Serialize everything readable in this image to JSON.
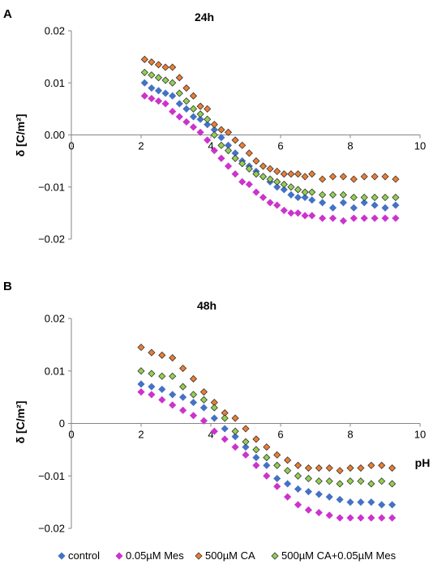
{
  "chart_data": [
    {
      "type": "scatter",
      "panel": "A",
      "title": "24h",
      "xlabel": "",
      "ylabel": "δ [C/m²]",
      "xlim": [
        0,
        10
      ],
      "ylim": [
        -0.02,
        0.02
      ],
      "xticks": [
        "0",
        "2",
        "4",
        "6",
        "8",
        "10"
      ],
      "yticks": [
        "0.02",
        "0.01",
        "0.00",
        "−0.01",
        "−0.02"
      ],
      "grid": false,
      "series": [
        {
          "name": "control",
          "color": "#4472C4",
          "marker": "diamond",
          "x": [
            2.1,
            2.3,
            2.5,
            2.7,
            2.9,
            3.1,
            3.3,
            3.5,
            3.7,
            3.9,
            4.1,
            4.3,
            4.5,
            4.7,
            4.9,
            5.1,
            5.3,
            5.5,
            5.7,
            5.9,
            6.1,
            6.3,
            6.5,
            6.7,
            6.9,
            7.2,
            7.5,
            7.8,
            8.1,
            8.4,
            8.7,
            9.0,
            9.3
          ],
          "y": [
            0.01,
            0.009,
            0.0085,
            0.008,
            0.0075,
            0.006,
            0.005,
            0.0035,
            0.003,
            0.002,
            0.001,
            -0.0005,
            -0.002,
            -0.0035,
            -0.005,
            -0.006,
            -0.007,
            -0.008,
            -0.009,
            -0.01,
            -0.0105,
            -0.0115,
            -0.012,
            -0.012,
            -0.0125,
            -0.013,
            -0.014,
            -0.013,
            -0.014,
            -0.013,
            -0.0135,
            -0.014,
            -0.0135
          ]
        },
        {
          "name": "0.05µM Mes",
          "color": "#CC33CC",
          "marker": "diamond",
          "x": [
            2.1,
            2.3,
            2.5,
            2.7,
            2.9,
            3.1,
            3.3,
            3.5,
            3.7,
            3.9,
            4.1,
            4.3,
            4.5,
            4.7,
            4.9,
            5.1,
            5.3,
            5.5,
            5.7,
            5.9,
            6.1,
            6.3,
            6.5,
            6.7,
            6.9,
            7.2,
            7.5,
            7.8,
            8.1,
            8.4,
            8.7,
            9.0,
            9.3
          ],
          "y": [
            0.0075,
            0.007,
            0.0065,
            0.006,
            0.0045,
            0.0035,
            0.0025,
            0.0015,
            0.0005,
            -0.001,
            -0.003,
            -0.0045,
            -0.006,
            -0.0075,
            -0.009,
            -0.0095,
            -0.011,
            -0.012,
            -0.013,
            -0.0135,
            -0.0145,
            -0.015,
            -0.015,
            -0.0155,
            -0.0155,
            -0.016,
            -0.016,
            -0.0165,
            -0.016,
            -0.016,
            -0.016,
            -0.016,
            -0.016
          ]
        },
        {
          "name": "500µM CA",
          "color": "#ED7D31",
          "marker": "diamond",
          "x": [
            2.1,
            2.3,
            2.5,
            2.7,
            2.9,
            3.1,
            3.3,
            3.5,
            3.7,
            3.9,
            4.1,
            4.3,
            4.5,
            4.7,
            4.9,
            5.1,
            5.3,
            5.5,
            5.7,
            5.9,
            6.1,
            6.3,
            6.5,
            6.7,
            6.9,
            7.2,
            7.5,
            7.8,
            8.1,
            8.4,
            8.7,
            9.0,
            9.3
          ],
          "y": [
            0.0145,
            0.014,
            0.0135,
            0.013,
            0.013,
            0.011,
            0.009,
            0.0075,
            0.0055,
            0.005,
            0.002,
            0.001,
            0.0005,
            -0.001,
            -0.002,
            -0.0035,
            -0.005,
            -0.006,
            -0.0065,
            -0.007,
            -0.0075,
            -0.0075,
            -0.0075,
            -0.008,
            -0.0075,
            -0.0085,
            -0.008,
            -0.008,
            -0.0085,
            -0.008,
            -0.008,
            -0.008,
            -0.0085
          ]
        },
        {
          "name": "500µM CA+0.05µM Mes",
          "color": "#92D050",
          "marker": "diamond",
          "x": [
            2.1,
            2.3,
            2.5,
            2.7,
            2.9,
            3.1,
            3.3,
            3.5,
            3.7,
            3.9,
            4.1,
            4.3,
            4.5,
            4.7,
            4.9,
            5.1,
            5.3,
            5.5,
            5.7,
            5.9,
            6.1,
            6.3,
            6.5,
            6.7,
            6.9,
            7.2,
            7.5,
            7.8,
            8.1,
            8.4,
            8.7,
            9.0,
            9.3
          ],
          "y": [
            0.012,
            0.0115,
            0.011,
            0.0105,
            0.01,
            0.008,
            0.0065,
            0.005,
            0.004,
            0.003,
            0.0,
            -0.002,
            -0.003,
            -0.0045,
            -0.0055,
            -0.0065,
            -0.0075,
            -0.008,
            -0.0085,
            -0.009,
            -0.0095,
            -0.01,
            -0.0105,
            -0.011,
            -0.011,
            -0.0115,
            -0.0115,
            -0.0115,
            -0.012,
            -0.012,
            -0.012,
            -0.012,
            -0.012
          ]
        }
      ]
    },
    {
      "type": "scatter",
      "panel": "B",
      "title": "48h",
      "xlabel": "pH",
      "ylabel": "δ [C/m²]",
      "xlim": [
        0,
        10
      ],
      "ylim": [
        -0.02,
        0.02
      ],
      "xticks": [
        "0",
        "2",
        "4",
        "6",
        "8",
        "10"
      ],
      "yticks": [
        "0.02",
        "0.01",
        "0",
        "−0.01",
        "−0.02"
      ],
      "grid": false,
      "series": [
        {
          "name": "control",
          "color": "#4472C4",
          "marker": "diamond",
          "x": [
            2.0,
            2.3,
            2.6,
            2.9,
            3.2,
            3.5,
            3.8,
            4.1,
            4.4,
            4.7,
            5.0,
            5.3,
            5.6,
            5.9,
            6.2,
            6.5,
            6.8,
            7.1,
            7.4,
            7.7,
            8.0,
            8.3,
            8.6,
            8.9,
            9.2
          ],
          "y": [
            0.0075,
            0.007,
            0.0065,
            0.0055,
            0.005,
            0.004,
            0.003,
            0.001,
            -0.001,
            -0.0025,
            -0.0045,
            -0.0065,
            -0.008,
            -0.0105,
            -0.0115,
            -0.0125,
            -0.013,
            -0.0135,
            -0.014,
            -0.0145,
            -0.015,
            -0.015,
            -0.015,
            -0.0155,
            -0.0155
          ]
        },
        {
          "name": "0.05µM Mes",
          "color": "#CC33CC",
          "marker": "diamond",
          "x": [
            2.0,
            2.3,
            2.6,
            2.9,
            3.2,
            3.5,
            3.8,
            4.1,
            4.4,
            4.7,
            5.0,
            5.3,
            5.6,
            5.9,
            6.2,
            6.5,
            6.8,
            7.1,
            7.4,
            7.7,
            8.0,
            8.3,
            8.6,
            8.9,
            9.2
          ],
          "y": [
            0.006,
            0.0055,
            0.0045,
            0.0035,
            0.0025,
            0.0015,
            0.0005,
            -0.0015,
            -0.003,
            -0.0045,
            -0.006,
            -0.008,
            -0.01,
            -0.012,
            -0.014,
            -0.0155,
            -0.0165,
            -0.017,
            -0.0175,
            -0.018,
            -0.018,
            -0.018,
            -0.018,
            -0.018,
            -0.018
          ]
        },
        {
          "name": "500µM CA",
          "color": "#ED7D31",
          "marker": "diamond",
          "x": [
            2.0,
            2.3,
            2.6,
            2.9,
            3.2,
            3.5,
            3.8,
            4.1,
            4.4,
            4.7,
            5.0,
            5.3,
            5.6,
            5.9,
            6.2,
            6.5,
            6.8,
            7.1,
            7.4,
            7.7,
            8.0,
            8.3,
            8.6,
            8.9,
            9.2
          ],
          "y": [
            0.0145,
            0.0135,
            0.013,
            0.0125,
            0.0105,
            0.0085,
            0.006,
            0.004,
            0.002,
            0.001,
            -0.001,
            -0.003,
            -0.0045,
            -0.006,
            -0.007,
            -0.008,
            -0.0085,
            -0.0085,
            -0.0085,
            -0.009,
            -0.0085,
            -0.0085,
            -0.008,
            -0.008,
            -0.0085
          ]
        },
        {
          "name": "500µM CA+0.05µM Mes",
          "color": "#92D050",
          "marker": "diamond",
          "x": [
            2.0,
            2.3,
            2.6,
            2.9,
            3.2,
            3.5,
            3.8,
            4.1,
            4.4,
            4.7,
            5.0,
            5.3,
            5.6,
            5.9,
            6.2,
            6.5,
            6.8,
            7.1,
            7.4,
            7.7,
            8.0,
            8.3,
            8.6,
            8.9,
            9.2
          ],
          "y": [
            0.01,
            0.0095,
            0.009,
            0.009,
            0.007,
            0.0055,
            0.0045,
            0.003,
            0.001,
            -0.0015,
            -0.0035,
            -0.005,
            -0.0065,
            -0.008,
            -0.009,
            -0.01,
            -0.0105,
            -0.011,
            -0.011,
            -0.0115,
            -0.011,
            -0.011,
            -0.0115,
            -0.011,
            -0.0115
          ]
        }
      ]
    }
  ],
  "legend": {
    "placement": "bottom",
    "items": [
      {
        "label": "control",
        "color": "#4472C4"
      },
      {
        "label": "0.05µM Mes",
        "color": "#CC33CC"
      },
      {
        "label": "500µM CA",
        "color": "#ED7D31"
      },
      {
        "label": "500µM CA+0.05µM Mes",
        "color": "#92D050"
      }
    ]
  }
}
